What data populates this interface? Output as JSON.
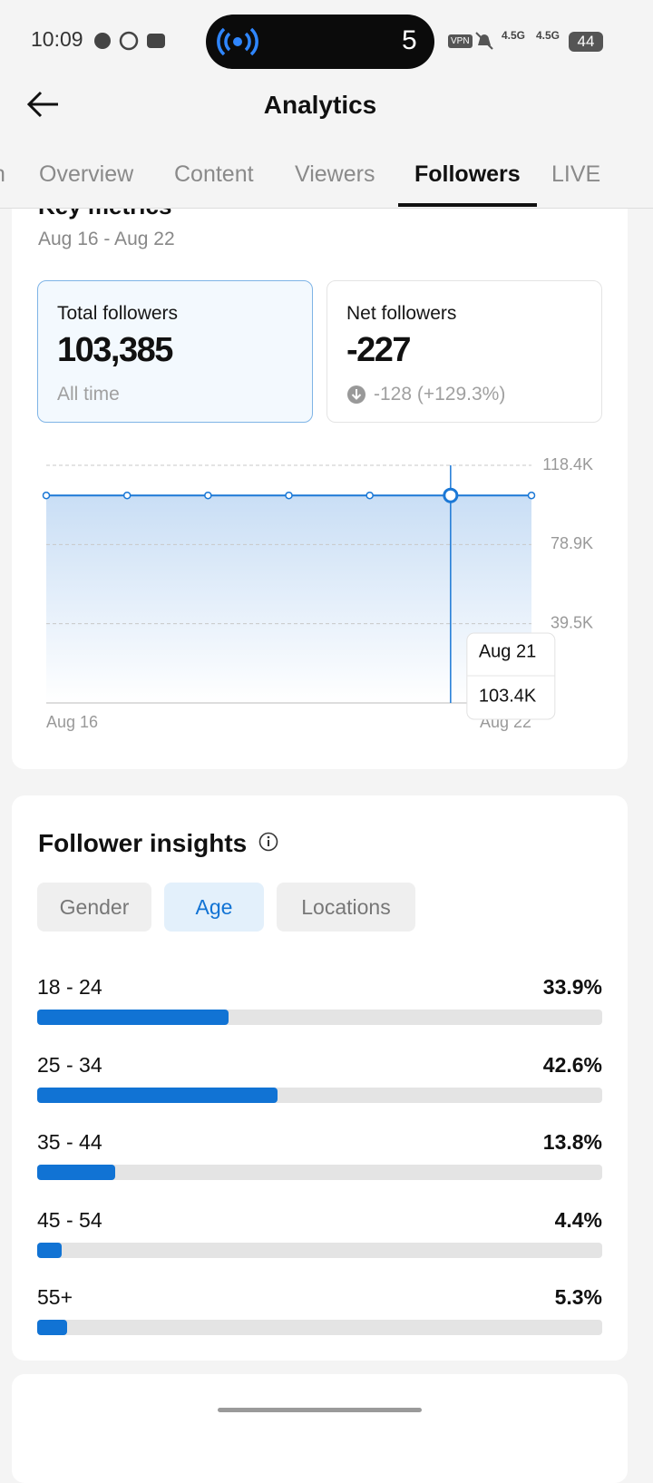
{
  "status_bar": {
    "time": "10:09",
    "pill_number": "5",
    "vpn": "VPN",
    "networks": [
      "4.5G",
      "4.5G"
    ],
    "battery": "44"
  },
  "header": {
    "title": "Analytics"
  },
  "tabs": [
    "n",
    "Overview",
    "Content",
    "Viewers",
    "Followers",
    "LIVE"
  ],
  "active_tab": "Followers",
  "key_metrics": {
    "title": "Key metrics",
    "date_range": "Aug 16 - Aug 22",
    "cards": [
      {
        "label": "Total followers",
        "value": "103,385",
        "note": "All time"
      },
      {
        "label": "Net followers",
        "value": "-227",
        "note": "-128 (+129.3%)"
      }
    ]
  },
  "chart_data": [
    {
      "type": "area",
      "categories": [
        "Aug 16",
        null,
        null,
        null,
        null,
        "Aug 21",
        "Aug 22"
      ],
      "values": [
        103400,
        103400,
        103400,
        103400,
        103400,
        103400,
        103400
      ],
      "tooltip_value_label": "103.4K",
      "color": "#1b78d6",
      "ylim": [
        0,
        118400
      ],
      "yticks": [
        {
          "value": 39500,
          "label": "39.5K"
        },
        {
          "value": 78900,
          "label": "78.9K"
        },
        {
          "value": 118400,
          "label": "118.4K"
        }
      ],
      "grid": true
    },
    {
      "type": "hbar",
      "title": "Follower insights",
      "filters": [
        "Gender",
        "Age",
        "Locations"
      ],
      "active_filter": "Age",
      "categories": [
        "18 - 24",
        "25 - 34",
        "35 - 44",
        "45 - 54",
        "55+"
      ],
      "values": [
        33.9,
        42.6,
        13.8,
        4.4,
        5.3
      ],
      "value_labels": [
        "33.9%",
        "42.6%",
        "13.8%",
        "4.4%",
        "5.3%"
      ],
      "xlim": [
        0,
        100
      ],
      "color": "#1173d4"
    }
  ]
}
